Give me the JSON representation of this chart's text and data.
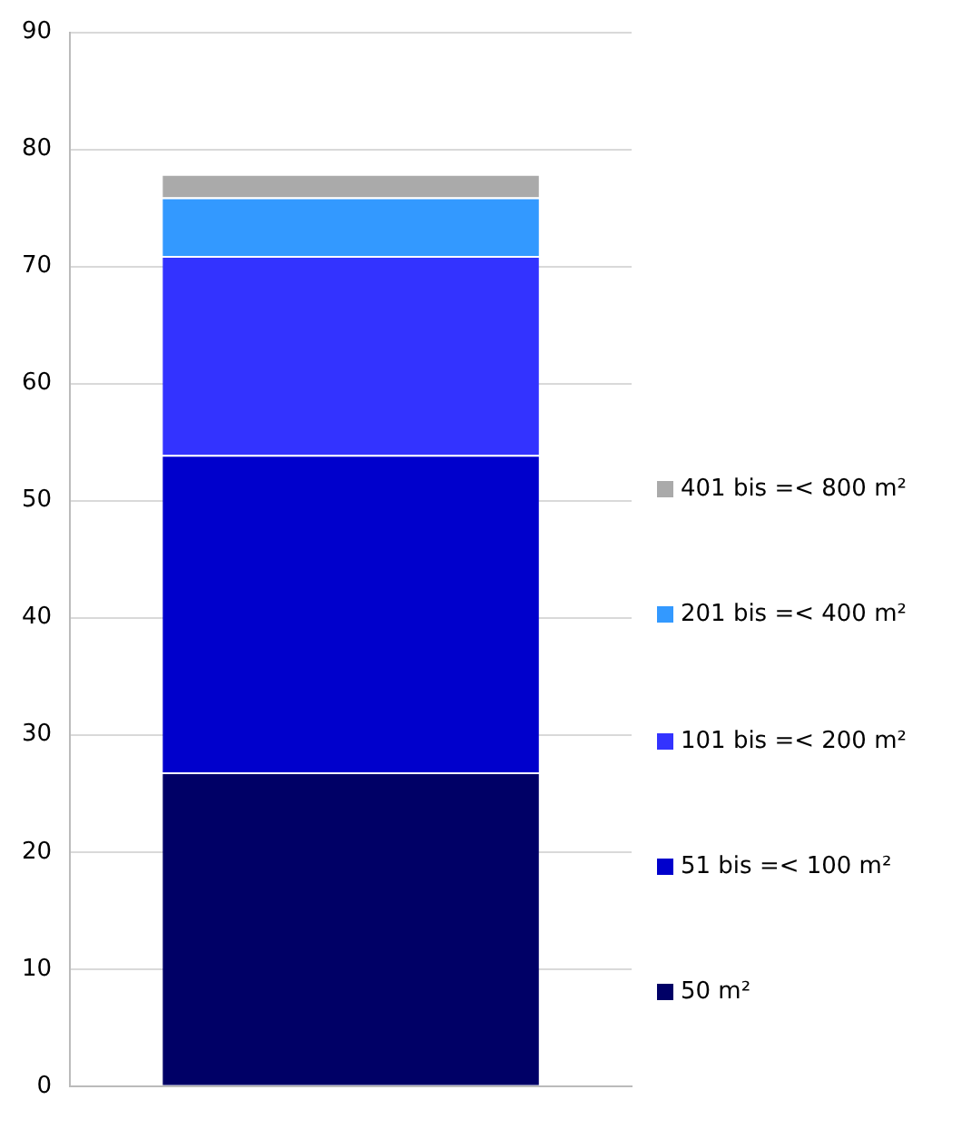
{
  "chart_data": {
    "type": "bar",
    "stacked": true,
    "categories": [
      null
    ],
    "series": [
      {
        "name": "50 m²",
        "color": "#000066",
        "values": [
          26.8
        ]
      },
      {
        "name": "51 bis =< 100 m²",
        "color": "#0000cc",
        "values": [
          27.1
        ]
      },
      {
        "name": "101 bis =< 200 m²",
        "color": "#3333ff",
        "values": [
          17
        ]
      },
      {
        "name": "201 bis =< 400 m²",
        "color": "#3399ff",
        "values": [
          5
        ]
      },
      {
        "name": "401 bis =< 800 m²",
        "color": "#aaaaaa",
        "values": [
          2
        ]
      }
    ],
    "ylim": [
      0,
      90
    ],
    "yticks": [
      0,
      10,
      20,
      30,
      40,
      50,
      60,
      70,
      80,
      90
    ],
    "grid": "y",
    "legend": "right"
  }
}
